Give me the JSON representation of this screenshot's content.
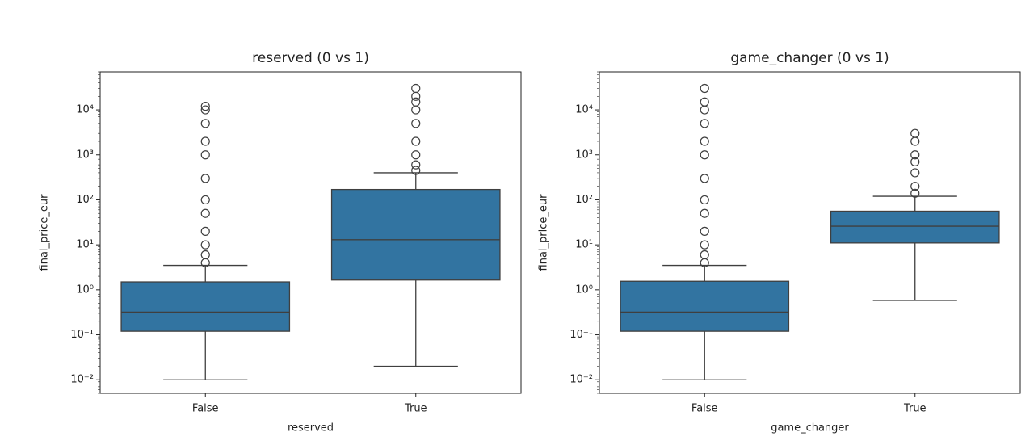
{
  "chart_data": [
    {
      "type": "box",
      "title": "reserved (0 vs 1)",
      "xlabel": "reserved",
      "ylabel": "final_price_eur",
      "categories": [
        "False",
        "True"
      ],
      "color": "#3274a1",
      "log_scale": true,
      "ylim": [
        0.005,
        70000
      ],
      "yticks": [
        {
          "value": 0.01,
          "label": "10⁻²"
        },
        {
          "value": 0.1,
          "label": "10⁻¹"
        },
        {
          "value": 1,
          "label": "10⁰"
        },
        {
          "value": 10,
          "label": "10¹"
        },
        {
          "value": 100,
          "label": "10²"
        },
        {
          "value": 1000,
          "label": "10³"
        },
        {
          "value": 10000,
          "label": "10⁴"
        }
      ],
      "boxes": [
        {
          "whislo": 0.01,
          "q1": 0.12,
          "med": 0.32,
          "q3": 1.5,
          "whishi": 3.5,
          "fliers": [
            4,
            6,
            10,
            20,
            50,
            100,
            300,
            1000,
            2000,
            5000,
            10000,
            12000
          ]
        },
        {
          "whislo": 0.02,
          "q1": 1.65,
          "med": 13,
          "q3": 170,
          "whishi": 400,
          "fliers": [
            450,
            600,
            1000,
            2000,
            5000,
            10000,
            15000,
            20000,
            30000
          ]
        }
      ]
    },
    {
      "type": "box",
      "title": "game_changer (0 vs 1)",
      "xlabel": "game_changer",
      "ylabel": "final_price_eur",
      "categories": [
        "False",
        "True"
      ],
      "color": "#3274a1",
      "log_scale": true,
      "ylim": [
        0.005,
        70000
      ],
      "yticks": [
        {
          "value": 0.01,
          "label": "10⁻²"
        },
        {
          "value": 0.1,
          "label": "10⁻¹"
        },
        {
          "value": 1,
          "label": "10⁰"
        },
        {
          "value": 10,
          "label": "10¹"
        },
        {
          "value": 100,
          "label": "10²"
        },
        {
          "value": 1000,
          "label": "10³"
        },
        {
          "value": 10000,
          "label": "10⁴"
        }
      ],
      "boxes": [
        {
          "whislo": 0.01,
          "q1": 0.12,
          "med": 0.32,
          "q3": 1.55,
          "whishi": 3.5,
          "fliers": [
            4,
            6,
            10,
            20,
            50,
            100,
            300,
            1000,
            2000,
            5000,
            10000,
            15000,
            30000
          ]
        },
        {
          "whislo": 0.58,
          "q1": 11,
          "med": 26,
          "q3": 56,
          "whishi": 120,
          "fliers": [
            140,
            200,
            400,
            700,
            1000,
            2000,
            3000
          ]
        }
      ]
    }
  ]
}
